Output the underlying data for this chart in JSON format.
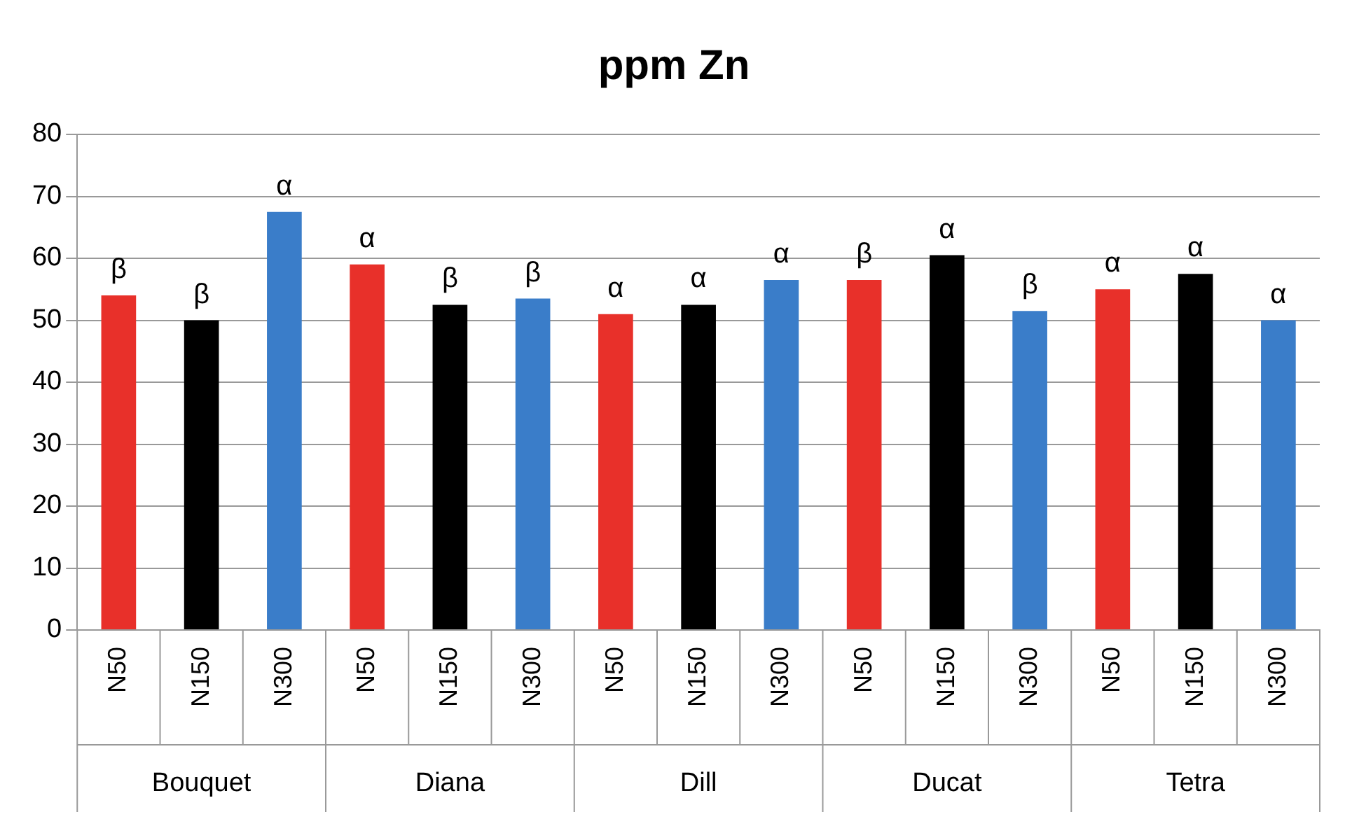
{
  "chart_data": {
    "type": "bar",
    "title": "ppm Zn",
    "categories": [
      "Bouquet",
      "Diana",
      "Dill",
      "Ducat",
      "Tetra"
    ],
    "series": [
      {
        "name": "N50",
        "color": "#e8302a",
        "values": [
          54,
          59,
          51,
          56.5,
          55
        ],
        "value_labels": [
          "β",
          "α",
          "α",
          "β",
          "α"
        ]
      },
      {
        "name": "N150",
        "color": "#000000",
        "values": [
          50,
          52.5,
          52.5,
          60.5,
          57.5
        ],
        "value_labels": [
          "β",
          "β",
          "α",
          "α",
          "α"
        ]
      },
      {
        "name": "N300",
        "color": "#3a7dc9",
        "values": [
          67.5,
          53.5,
          56.5,
          51.5,
          50
        ],
        "value_labels": [
          "α",
          "β",
          "α",
          "β",
          "α"
        ]
      }
    ],
    "ylim": [
      0,
      80
    ],
    "yticks": [
      0,
      10,
      20,
      30,
      40,
      50,
      60,
      70,
      80
    ],
    "grid": "y",
    "legend": false
  }
}
